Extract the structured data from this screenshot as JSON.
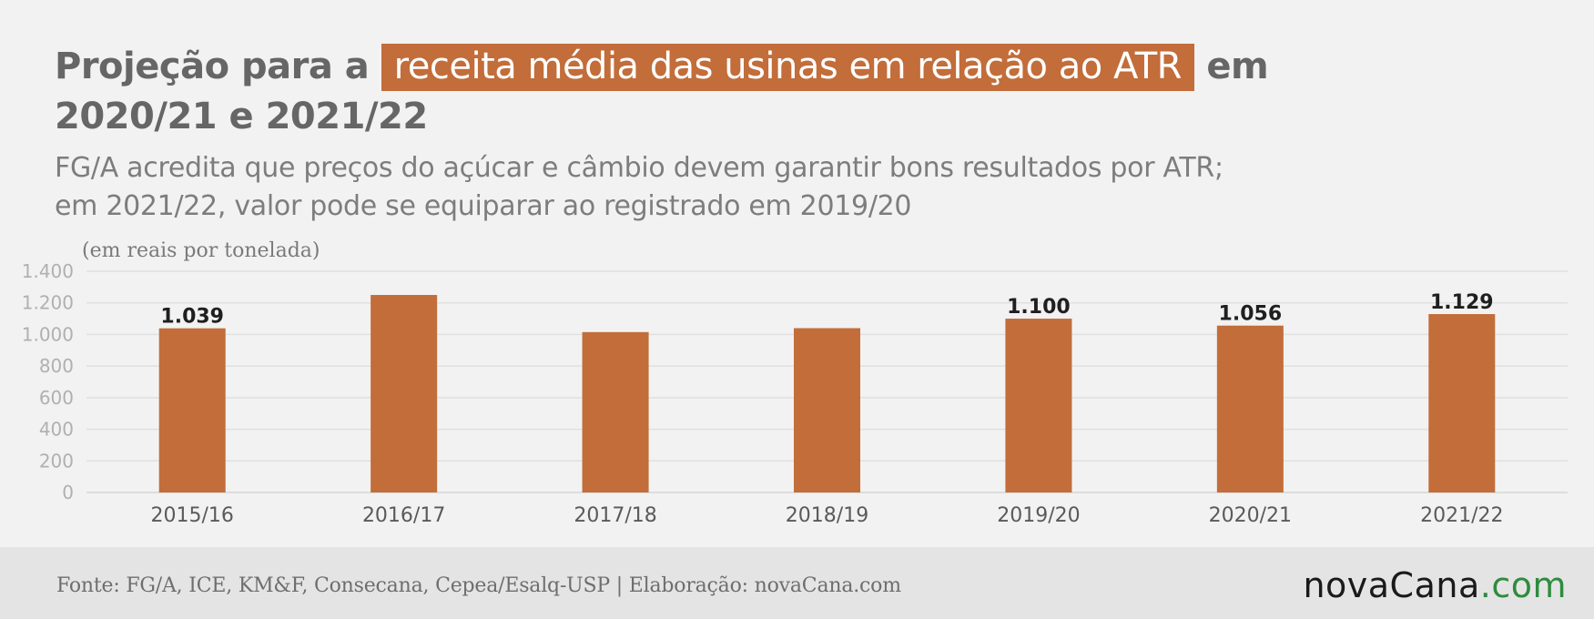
{
  "title": {
    "before": "Projeção para a",
    "highlight": "receita média das usinas em relação ao ATR",
    "after_line1": "em",
    "line2": "2020/21 e 2021/22"
  },
  "subtitle": {
    "line1": "FG/A acredita que preços do açúcar e câmbio devem garantir bons resultados por ATR;",
    "line2": "em 2021/22, valor pode se equiparar ao registrado em 2019/20"
  },
  "footer": {
    "source": "Fonte: FG/A, ICE, KM&F, Consecana, Cepea/Esalq-USP | Elaboração: novaCana.com",
    "logo_part1": "nova",
    "logo_part2": "Cana",
    "logo_part3": ".com"
  },
  "colors": {
    "bar": "#c26d3a",
    "logo_green": "#2e8b3e"
  },
  "chart_data": {
    "type": "bar",
    "unit_label": "(em reais por tonelada)",
    "categories": [
      "2015/16",
      "2016/17",
      "2017/18",
      "2018/19",
      "2019/20",
      "2020/21",
      "2021/22"
    ],
    "values": [
      1039,
      1250,
      1015,
      1040,
      1100,
      1056,
      1129
    ],
    "data_labels": [
      "1.039",
      "",
      "",
      "",
      "1.100",
      "1.056",
      "1.129"
    ],
    "ylim": [
      0,
      1400
    ],
    "yticks": [
      0,
      200,
      400,
      600,
      800,
      1000,
      1200,
      1400
    ],
    "ytick_labels": [
      "0",
      "200",
      "400",
      "600",
      "800",
      "1.000",
      "1.200",
      "1.400"
    ],
    "grid": true,
    "legend": "none"
  }
}
